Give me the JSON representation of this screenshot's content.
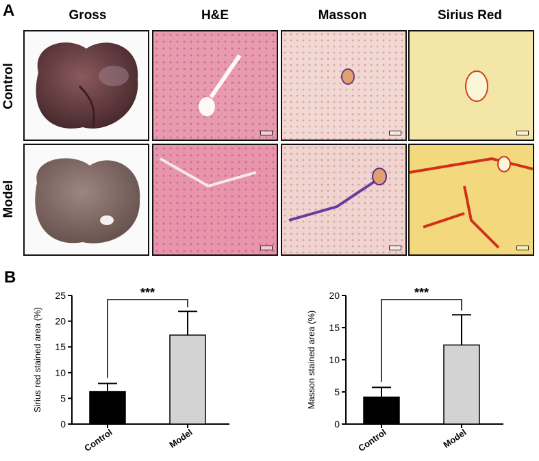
{
  "panel_a": {
    "label": "A",
    "columns": [
      "Gross",
      "H&E",
      "Masson",
      "Sirius Red"
    ],
    "rows": [
      "Control",
      "Model"
    ]
  },
  "panel_b": {
    "label": "B"
  },
  "significance": "***",
  "chart_data": [
    {
      "type": "bar",
      "categories": [
        "Control",
        "Model"
      ],
      "values": [
        6.3,
        17.3
      ],
      "errors": [
        1.6,
        4.6
      ],
      "colors": [
        "#000000",
        "#d3d3d3"
      ],
      "xlabel": "",
      "ylabel": "Sirius red stained area (%)",
      "ylim": [
        0,
        25
      ],
      "yticks": [
        0,
        5,
        10,
        15,
        20,
        25
      ],
      "grid": false,
      "annotation": "***"
    },
    {
      "type": "bar",
      "categories": [
        "Control",
        "Model"
      ],
      "values": [
        4.2,
        12.3
      ],
      "errors": [
        1.5,
        4.7
      ],
      "colors": [
        "#000000",
        "#d3d3d3"
      ],
      "xlabel": "",
      "ylabel": "Masson stained area (%)",
      "ylim": [
        0,
        20
      ],
      "yticks": [
        0,
        5,
        10,
        15,
        20
      ],
      "grid": false,
      "annotation": "***"
    }
  ]
}
